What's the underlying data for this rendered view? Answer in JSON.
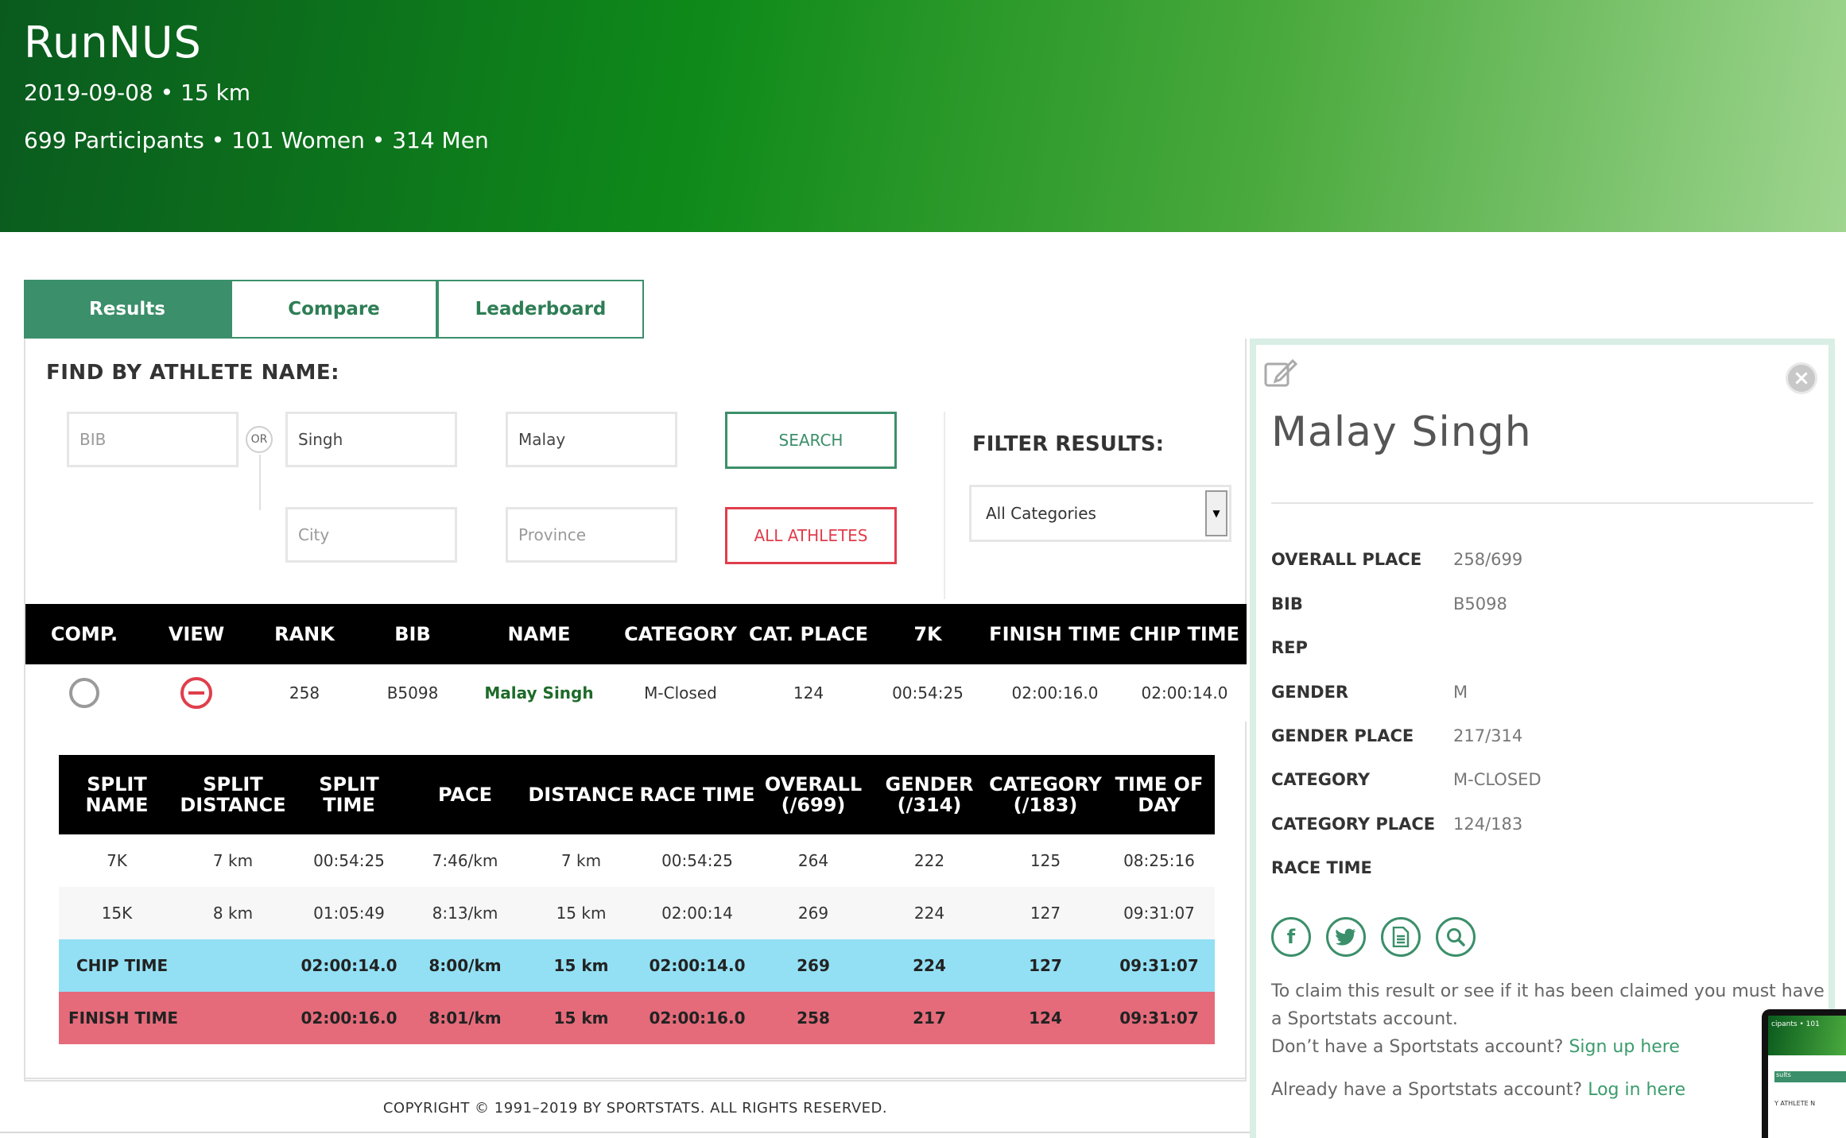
{
  "header": {
    "title": "RunNUS",
    "date_distance": "2019-09-08 • 15 km",
    "participants": "699 Participants • 101 Women • 314 Men"
  },
  "tabs": [
    {
      "label": "Results",
      "active": true
    },
    {
      "label": "Compare",
      "active": false
    },
    {
      "label": "Leaderboard",
      "active": false
    }
  ],
  "search": {
    "title": "FIND BY ATHLETE NAME:",
    "bib_placeholder": "BIB",
    "or_label": "OR",
    "last_name_value": "Singh",
    "first_name_value": "Malay",
    "city_placeholder": "City",
    "province_placeholder": "Province",
    "search_label": "SEARCH",
    "all_athletes_label": "ALL ATHLETES"
  },
  "filter": {
    "title": "FILTER RESULTS:",
    "selected": "All Categories"
  },
  "results_table": {
    "columns": [
      "COMP.",
      "VIEW",
      "RANK",
      "BIB",
      "NAME",
      "CATEGORY",
      "CAT. PLACE",
      "7K",
      "FINISH TIME",
      "CHIP TIME"
    ],
    "row": {
      "rank": "258",
      "bib": "B5098",
      "name": "Malay Singh",
      "category": "M-Closed",
      "cat_place": "124",
      "split_7k": "00:54:25",
      "finish_time": "02:00:16.0",
      "chip_time": "02:00:14.0"
    }
  },
  "splits_table": {
    "columns": [
      {
        "l1": "SPLIT",
        "l2": "NAME"
      },
      {
        "l1": "SPLIT",
        "l2": "DISTANCE"
      },
      {
        "l1": "SPLIT TIME",
        "l2": ""
      },
      {
        "l1": "PACE",
        "l2": ""
      },
      {
        "l1": "DISTANCE",
        "l2": ""
      },
      {
        "l1": "RACE TIME",
        "l2": ""
      },
      {
        "l1": "OVERALL",
        "l2": "(/699)"
      },
      {
        "l1": "GENDER",
        "l2": "(/314)"
      },
      {
        "l1": "CATEGORY",
        "l2": "(/183)"
      },
      {
        "l1": "TIME OF",
        "l2": "DAY"
      }
    ],
    "rows": [
      [
        "7K",
        "7 km",
        "00:54:25",
        "7:46/km",
        "7 km",
        "00:54:25",
        "264",
        "222",
        "125",
        "08:25:16"
      ],
      [
        "15K",
        "8 km",
        "01:05:49",
        "8:13/km",
        "15 km",
        "02:00:14",
        "269",
        "224",
        "127",
        "09:31:07"
      ],
      [
        "CHIP TIME",
        "",
        "02:00:14.0",
        "8:00/km",
        "15 km",
        "02:00:14.0",
        "269",
        "224",
        "127",
        "09:31:07"
      ],
      [
        "FINISH TIME",
        "",
        "02:00:16.0",
        "8:01/km",
        "15 km",
        "02:00:16.0",
        "258",
        "217",
        "124",
        "09:31:07"
      ]
    ]
  },
  "footer": {
    "copyright": "COPYRIGHT © 1991–2019 BY SPORTSTATS. ALL RIGHTS RESERVED."
  },
  "athlete": {
    "name": "Malay Singh",
    "details": [
      {
        "key": "OVERALL PLACE",
        "value": "258/699"
      },
      {
        "key": "BIB",
        "value": "B5098"
      },
      {
        "key": "REP",
        "value": ""
      },
      {
        "key": "GENDER",
        "value": "M"
      },
      {
        "key": "GENDER PLACE",
        "value": "217/314"
      },
      {
        "key": "CATEGORY",
        "value": "M-CLOSED"
      },
      {
        "key": "CATEGORY PLACE",
        "value": "124/183"
      },
      {
        "key": "RACE TIME",
        "value": ""
      }
    ],
    "icons": [
      "facebook-icon",
      "twitter-icon",
      "document-icon",
      "search-icon"
    ],
    "claim_line1": "To claim this result or see if it has been claimed you must have",
    "claim_line2": "a Sportstats account.",
    "signup_prefix": "Don’t have a Sportstats account?",
    "signup_link": "Sign up here",
    "login_prefix": "Already have a Sportstats account?",
    "login_link": "Log in here"
  },
  "thumbnail": {
    "header_text": "cipants • 101",
    "tab_text": "sults",
    "body_text": "Y ATHLETE N"
  },
  "colors": {
    "accent_green": "#3b8f6a",
    "link_green": "#3b9c6c",
    "danger_red": "#e03e4c",
    "chip_row": "#93e0f4",
    "finish_row": "#e56b7a"
  }
}
